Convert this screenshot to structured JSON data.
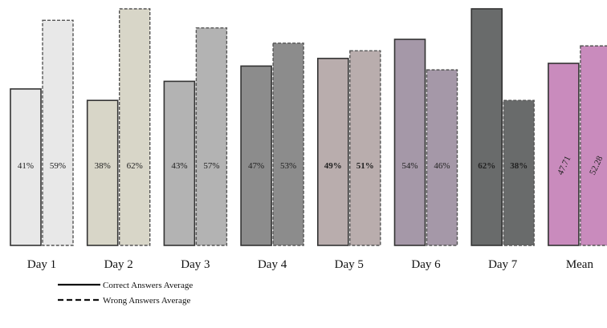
{
  "chart_data": {
    "type": "bar",
    "categories": [
      "Day 1",
      "Day 2",
      "Day 3",
      "Day 4",
      "Day 5",
      "Day 6",
      "Day 7",
      "Mean"
    ],
    "series": [
      {
        "name": "Correct Answers Average",
        "values": [
          41,
          38,
          43,
          47,
          49,
          54,
          62,
          47.71
        ],
        "labels": [
          "41%",
          "38%",
          "43%",
          "47%",
          "49%",
          "54%",
          "62%",
          "47.71"
        ],
        "line_style": "solid"
      },
      {
        "name": "Wrong Answers Average",
        "values": [
          59,
          62,
          57,
          53,
          51,
          46,
          38,
          52.28
        ],
        "labels": [
          "59%",
          "62%",
          "57%",
          "53%",
          "51%",
          "46%",
          "38%",
          "52.28"
        ],
        "line_style": "dashed"
      }
    ],
    "colors": [
      "#e8e8e8",
      "#d8d6c8",
      "#b3b3b3",
      "#8c8c8c",
      "#b9adad",
      "#a598a8",
      "#696b6b",
      "#c98bbd"
    ],
    "bold_labels": [
      false,
      false,
      false,
      false,
      true,
      false,
      true,
      false
    ],
    "rotated_labels": [
      false,
      false,
      false,
      false,
      false,
      false,
      false,
      true
    ],
    "title": "",
    "xlabel": "",
    "ylabel": "",
    "ylim": [
      0,
      62
    ],
    "grid": false,
    "legend_position": "bottom-left"
  }
}
